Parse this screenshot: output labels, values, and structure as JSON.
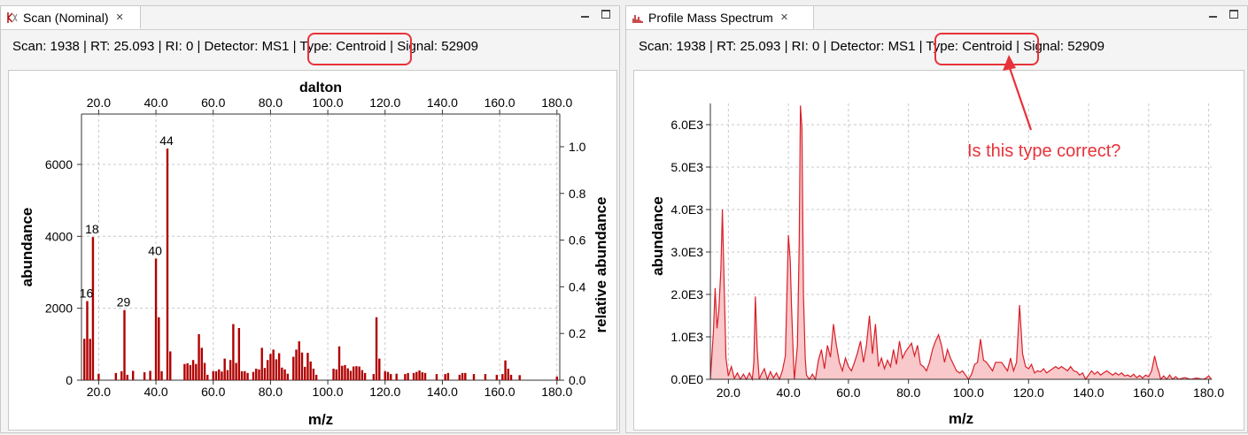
{
  "left_panel": {
    "tab_title": "Scan (Nominal)",
    "close_glyph": "✕",
    "info": {
      "part1": "Scan: 1938 | RT: 25.093 | RI: 0 | Detector: MS1 |",
      "type": "Type: Centroid",
      "part2": "| Signal: 52909"
    }
  },
  "right_panel": {
    "tab_title": "Profile Mass Spectrum",
    "close_glyph": "✕",
    "info": {
      "part1": "Scan: 1938 | RT: 25.093 | RI: 0 | Detector: MS1 |",
      "type": "Type: Centroid",
      "part2": "| Signal: 52909"
    },
    "annotation": "Is this type correct?"
  },
  "colors": {
    "bar": "#b00000",
    "profile_line": "#d8202a",
    "profile_fill": "#f8c8ca",
    "highlight": "#e8323a",
    "grid": "#c8c8c8"
  },
  "chart_data": [
    {
      "type": "bar",
      "title": "",
      "top_axis_label": "dalton",
      "xlabel": "m/z",
      "ylabel": "abundance",
      "y2label": "relative abundance",
      "xlim": [
        14,
        181
      ],
      "ylim": [
        0,
        7400
      ],
      "y2lim": [
        0,
        1.14
      ],
      "x_ticks": [
        "20.0",
        "40.0",
        "60.0",
        "80.0",
        "100.0",
        "120.0",
        "140.0",
        "160.0",
        "180.0"
      ],
      "y_ticks": [
        "0",
        "2000",
        "4000",
        "6000"
      ],
      "y2_ticks": [
        "0.0",
        "0.2",
        "0.4",
        "0.6",
        "0.8",
        "1.0"
      ],
      "grid": true,
      "bars": [
        [
          15,
          1150
        ],
        [
          16,
          2200
        ],
        [
          17,
          1150
        ],
        [
          18,
          3980
        ],
        [
          20,
          180
        ],
        [
          26,
          200
        ],
        [
          28,
          250
        ],
        [
          29,
          1950
        ],
        [
          30,
          150
        ],
        [
          32,
          260
        ],
        [
          36,
          220
        ],
        [
          38,
          260
        ],
        [
          40,
          3380
        ],
        [
          41,
          1750
        ],
        [
          42,
          250
        ],
        [
          44,
          6440
        ],
        [
          45,
          800
        ],
        [
          50,
          450
        ],
        [
          51,
          470
        ],
        [
          52,
          420
        ],
        [
          53,
          560
        ],
        [
          54,
          450
        ],
        [
          55,
          1280
        ],
        [
          56,
          900
        ],
        [
          57,
          480
        ],
        [
          58,
          150
        ],
        [
          60,
          250
        ],
        [
          61,
          250
        ],
        [
          62,
          300
        ],
        [
          63,
          240
        ],
        [
          64,
          600
        ],
        [
          65,
          280
        ],
        [
          66,
          560
        ],
        [
          67,
          1560
        ],
        [
          68,
          480
        ],
        [
          69,
          1450
        ],
        [
          70,
          250
        ],
        [
          71,
          250
        ],
        [
          72,
          200
        ],
        [
          74,
          230
        ],
        [
          75,
          320
        ],
        [
          76,
          300
        ],
        [
          77,
          900
        ],
        [
          78,
          340
        ],
        [
          79,
          560
        ],
        [
          80,
          730
        ],
        [
          81,
          850
        ],
        [
          82,
          580
        ],
        [
          83,
          750
        ],
        [
          84,
          350
        ],
        [
          85,
          300
        ],
        [
          86,
          180
        ],
        [
          88,
          650
        ],
        [
          89,
          850
        ],
        [
          90,
          1080
        ],
        [
          91,
          770
        ],
        [
          92,
          370
        ],
        [
          93,
          760
        ],
        [
          94,
          520
        ],
        [
          95,
          320
        ],
        [
          96,
          150
        ],
        [
          102,
          320
        ],
        [
          103,
          300
        ],
        [
          104,
          940
        ],
        [
          105,
          400
        ],
        [
          106,
          420
        ],
        [
          107,
          330
        ],
        [
          108,
          260
        ],
        [
          109,
          380
        ],
        [
          110,
          390
        ],
        [
          111,
          380
        ],
        [
          112,
          280
        ],
        [
          113,
          200
        ],
        [
          116,
          170
        ],
        [
          117,
          1750
        ],
        [
          118,
          600
        ],
        [
          120,
          250
        ],
        [
          121,
          230
        ],
        [
          122,
          170
        ],
        [
          124,
          180
        ],
        [
          127,
          170
        ],
        [
          128,
          200
        ],
        [
          130,
          200
        ],
        [
          131,
          230
        ],
        [
          132,
          270
        ],
        [
          133,
          220
        ],
        [
          134,
          200
        ],
        [
          138,
          170
        ],
        [
          141,
          170
        ],
        [
          142,
          200
        ],
        [
          146,
          150
        ],
        [
          147,
          200
        ],
        [
          148,
          200
        ],
        [
          151,
          170
        ],
        [
          155,
          170
        ],
        [
          159,
          150
        ],
        [
          161,
          170
        ],
        [
          162,
          550
        ],
        [
          163,
          320
        ],
        [
          164,
          150
        ],
        [
          167,
          140
        ],
        [
          180,
          100
        ]
      ],
      "data_labels": [
        {
          "x": 16,
          "y": 2200,
          "text": "16"
        },
        {
          "x": 18,
          "y": 3980,
          "text": "18"
        },
        {
          "x": 29,
          "y": 1950,
          "text": "29"
        },
        {
          "x": 40,
          "y": 3380,
          "text": "40"
        },
        {
          "x": 44,
          "y": 6440,
          "text": "44"
        }
      ]
    },
    {
      "type": "area",
      "title": "",
      "xlabel": "m/z",
      "ylabel": "abundance",
      "xlim": [
        14,
        181
      ],
      "ylim": [
        0,
        6500
      ],
      "x_ticks": [
        "20.0",
        "40.0",
        "60.0",
        "80.0",
        "100.0",
        "120.0",
        "140.0",
        "160.0",
        "180.0"
      ],
      "y_ticks": [
        "0.0E0",
        "1.0E3",
        "2.0E3",
        "3.0E3",
        "4.0E3",
        "5.0E3",
        "6.0E3"
      ],
      "grid": true,
      "points": [
        [
          14,
          0
        ],
        [
          15,
          1100
        ],
        [
          15.6,
          2150
        ],
        [
          16.2,
          1200
        ],
        [
          16.8,
          1600
        ],
        [
          17.5,
          2600
        ],
        [
          18,
          4000
        ],
        [
          18.6,
          2200
        ],
        [
          19.2,
          500
        ],
        [
          20,
          80
        ],
        [
          21,
          300
        ],
        [
          22,
          20
        ],
        [
          23,
          150
        ],
        [
          24,
          0
        ],
        [
          25,
          120
        ],
        [
          26,
          0
        ],
        [
          27,
          150
        ],
        [
          28,
          0
        ],
        [
          28.5,
          400
        ],
        [
          29,
          1950
        ],
        [
          29.6,
          700
        ],
        [
          30.3,
          0
        ],
        [
          31,
          120
        ],
        [
          32,
          250
        ],
        [
          33,
          0
        ],
        [
          34,
          180
        ],
        [
          35,
          30
        ],
        [
          36,
          150
        ],
        [
          37,
          0
        ],
        [
          38,
          200
        ],
        [
          39,
          550
        ],
        [
          40,
          3400
        ],
        [
          40.6,
          2800
        ],
        [
          41,
          1800
        ],
        [
          41.7,
          400
        ],
        [
          42,
          0
        ],
        [
          43,
          800
        ],
        [
          43.6,
          3200
        ],
        [
          44,
          6450
        ],
        [
          44.5,
          5900
        ],
        [
          45,
          2000
        ],
        [
          45.6,
          500
        ],
        [
          46,
          100
        ],
        [
          47,
          0
        ],
        [
          48,
          120
        ],
        [
          49,
          0
        ],
        [
          50,
          450
        ],
        [
          51,
          700
        ],
        [
          52,
          250
        ],
        [
          53,
          800
        ],
        [
          54,
          520
        ],
        [
          55,
          1300
        ],
        [
          56,
          800
        ],
        [
          57,
          400
        ],
        [
          58,
          200
        ],
        [
          59,
          500
        ],
        [
          60,
          300
        ],
        [
          61,
          200
        ],
        [
          62,
          400
        ],
        [
          63,
          620
        ],
        [
          64,
          900
        ],
        [
          65,
          400
        ],
        [
          66,
          800
        ],
        [
          67,
          1500
        ],
        [
          68,
          600
        ],
        [
          69,
          1300
        ],
        [
          70,
          300
        ],
        [
          71,
          500
        ],
        [
          72,
          250
        ],
        [
          73,
          450
        ],
        [
          74,
          300
        ],
        [
          75,
          700
        ],
        [
          76,
          350
        ],
        [
          77,
          900
        ],
        [
          78,
          500
        ],
        [
          79,
          650
        ],
        [
          80,
          750
        ],
        [
          81,
          850
        ],
        [
          82,
          550
        ],
        [
          83,
          800
        ],
        [
          84,
          350
        ],
        [
          85,
          300
        ],
        [
          86,
          200
        ],
        [
          87,
          400
        ],
        [
          88,
          700
        ],
        [
          89,
          900
        ],
        [
          90,
          1050
        ],
        [
          91,
          800
        ],
        [
          92,
          400
        ],
        [
          93,
          700
        ],
        [
          94,
          500
        ],
        [
          95,
          350
        ],
        [
          96,
          200
        ],
        [
          97,
          150
        ],
        [
          98,
          200
        ],
        [
          99,
          100
        ],
        [
          100,
          0
        ],
        [
          101,
          120
        ],
        [
          102,
          350
        ],
        [
          103,
          400
        ],
        [
          104,
          950
        ],
        [
          105,
          450
        ],
        [
          106,
          400
        ],
        [
          107,
          300
        ],
        [
          108,
          200
        ],
        [
          109,
          400
        ],
        [
          110,
          400
        ],
        [
          111,
          400
        ],
        [
          112,
          300
        ],
        [
          113,
          200
        ],
        [
          114,
          500
        ],
        [
          115,
          200
        ],
        [
          116,
          400
        ],
        [
          117,
          1750
        ],
        [
          118,
          600
        ],
        [
          119,
          300
        ],
        [
          120,
          250
        ],
        [
          121,
          350
        ],
        [
          122,
          150
        ],
        [
          123,
          200
        ],
        [
          124,
          180
        ],
        [
          125,
          250
        ],
        [
          126,
          150
        ],
        [
          127,
          200
        ],
        [
          128,
          250
        ],
        [
          129,
          300
        ],
        [
          130,
          250
        ],
        [
          131,
          300
        ],
        [
          132,
          250
        ],
        [
          133,
          200
        ],
        [
          134,
          300
        ],
        [
          135,
          200
        ],
        [
          136,
          180
        ],
        [
          137,
          100
        ],
        [
          138,
          150
        ],
        [
          139,
          0
        ],
        [
          140,
          100
        ],
        [
          141,
          200
        ],
        [
          142,
          120
        ],
        [
          143,
          180
        ],
        [
          144,
          100
        ],
        [
          145,
          150
        ],
        [
          146,
          200
        ],
        [
          147,
          150
        ],
        [
          148,
          100
        ],
        [
          149,
          150
        ],
        [
          150,
          100
        ],
        [
          151,
          150
        ],
        [
          152,
          80
        ],
        [
          153,
          100
        ],
        [
          154,
          60
        ],
        [
          155,
          120
        ],
        [
          156,
          40
        ],
        [
          157,
          90
        ],
        [
          158,
          30
        ],
        [
          159,
          100
        ],
        [
          160,
          60
        ],
        [
          161,
          200
        ],
        [
          162,
          550
        ],
        [
          162.8,
          300
        ],
        [
          163.5,
          150
        ],
        [
          164,
          0
        ],
        [
          165,
          80
        ],
        [
          166,
          0
        ],
        [
          167,
          100
        ],
        [
          168,
          0
        ],
        [
          169,
          60
        ],
        [
          170,
          0
        ],
        [
          172,
          40
        ],
        [
          174,
          0
        ],
        [
          176,
          30
        ],
        [
          178,
          0
        ],
        [
          179,
          20
        ],
        [
          180,
          80
        ],
        [
          181,
          0
        ]
      ]
    }
  ]
}
